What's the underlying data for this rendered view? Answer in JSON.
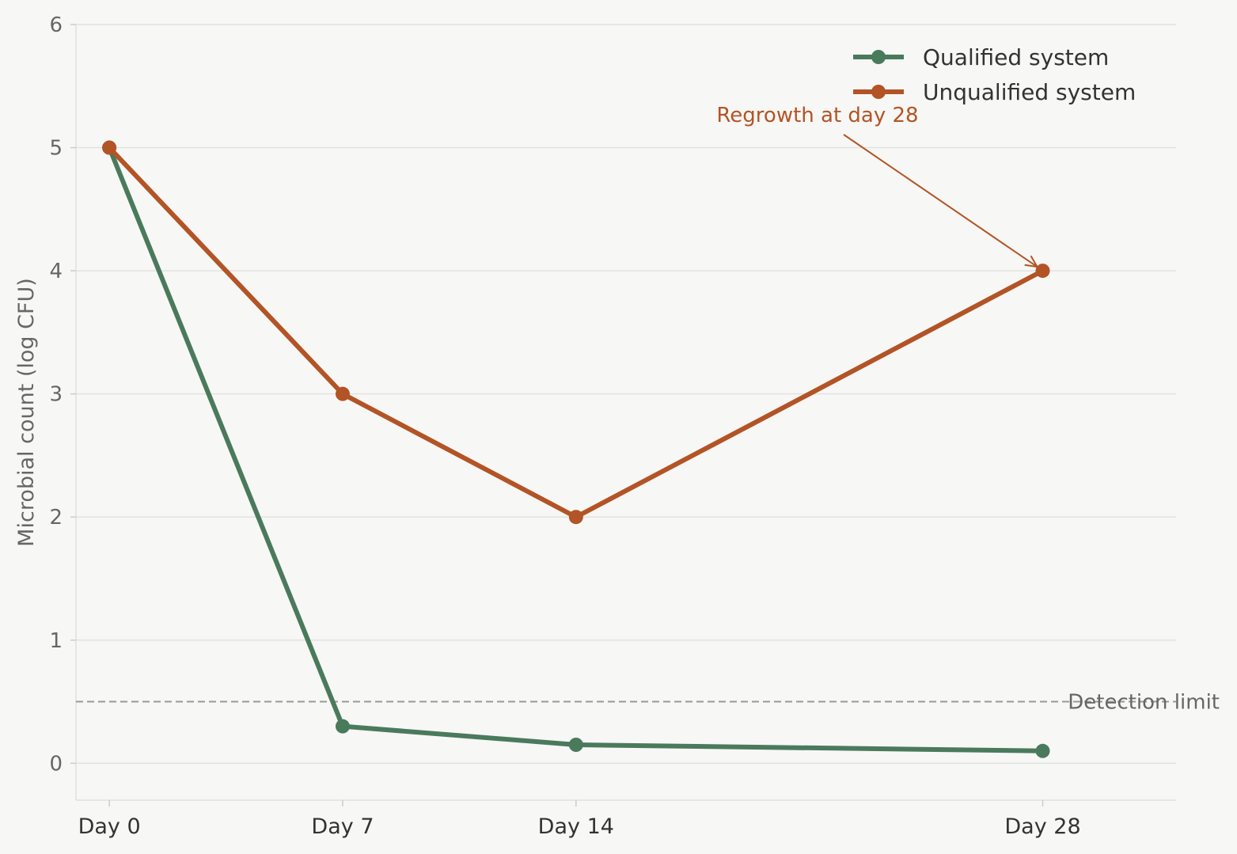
{
  "chart_data": {
    "type": "line",
    "x": [
      0,
      7,
      14,
      28
    ],
    "x_tick_labels": [
      "Day 0",
      "Day 7",
      "Day 14",
      "Day 28"
    ],
    "xlim": [
      -1,
      32
    ],
    "ylim": [
      -0.3,
      6
    ],
    "y_ticks": [
      0,
      1,
      2,
      3,
      4,
      5,
      6
    ],
    "ylabel": "Microbial count (log CFU)",
    "xlabel": "",
    "grid": "horizontal",
    "legend_position": "top-right",
    "series": [
      {
        "name": "Qualified system",
        "values": [
          5,
          0.3,
          0.15,
          0.1
        ],
        "color": "#4a7a5c"
      },
      {
        "name": "Unqualified system",
        "values": [
          5,
          3,
          2,
          4
        ],
        "color": "#b35426"
      }
    ],
    "reference_line": {
      "y": 0.5,
      "label": "Detection limit",
      "color": "#999999"
    },
    "annotation": {
      "text": "Regrowth at day 28",
      "x": 28,
      "y": 4,
      "color": "#b35426"
    }
  }
}
